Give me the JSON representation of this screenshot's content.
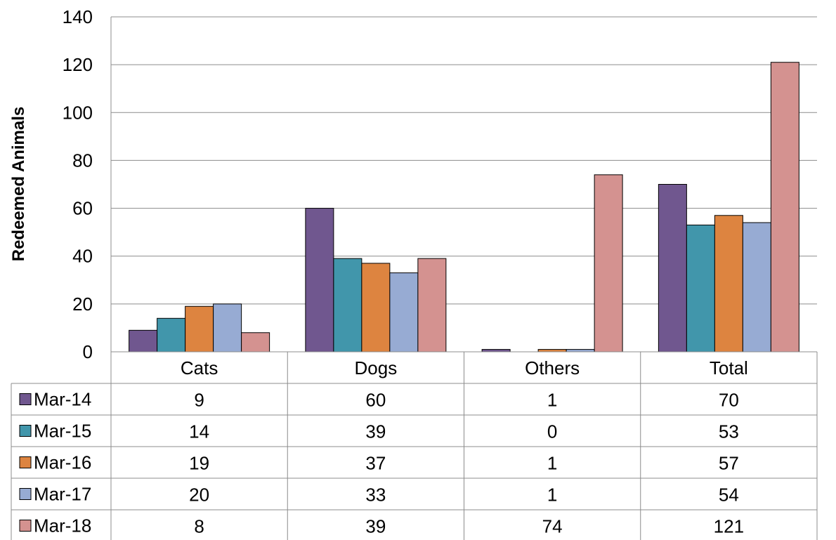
{
  "chart_data": {
    "type": "bar",
    "title": "",
    "xlabel": "",
    "ylabel": "Redeemed Animals",
    "ylim": [
      0,
      140
    ],
    "yticks": [
      0,
      20,
      40,
      60,
      80,
      100,
      120,
      140
    ],
    "grid": true,
    "legend": "data-table-left",
    "categories": [
      "Cats",
      "Dogs",
      "Others",
      "Total"
    ],
    "series": [
      {
        "name": "Mar-14",
        "color": "#70578f",
        "values": [
          9,
          60,
          1,
          70
        ]
      },
      {
        "name": "Mar-15",
        "color": "#4196ab",
        "values": [
          14,
          39,
          0,
          53
        ]
      },
      {
        "name": "Mar-16",
        "color": "#dd8440",
        "values": [
          19,
          37,
          1,
          57
        ]
      },
      {
        "name": "Mar-17",
        "color": "#97abd3",
        "values": [
          20,
          33,
          1,
          54
        ]
      },
      {
        "name": "Mar-18",
        "color": "#d49290",
        "values": [
          8,
          39,
          74,
          121
        ]
      }
    ]
  }
}
